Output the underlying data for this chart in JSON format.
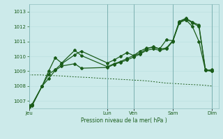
{
  "xlabel": "Pression niveau de la mer( hPa )",
  "background_color": "#cceaea",
  "grid_color_minor": "#b8dede",
  "grid_color_major": "#a0cccc",
  "line_color": "#1a5c1a",
  "ylim": [
    1006.5,
    1013.5
  ],
  "xlim": [
    0,
    29
  ],
  "day_labels": [
    "Jeu",
    "Lun",
    "Ven",
    "Sam",
    "Dim"
  ],
  "day_positions": [
    0,
    12,
    16,
    22,
    28
  ],
  "series1_x": [
    0,
    0.5,
    2,
    3,
    4,
    5,
    7,
    8,
    12,
    13,
    14,
    15,
    16,
    17,
    18,
    19,
    20,
    21,
    22,
    23,
    24,
    25,
    26,
    27,
    28
  ],
  "series1_y": [
    1006.7,
    1006.8,
    1008.0,
    1008.8,
    1009.1,
    1009.5,
    1010.1,
    1010.35,
    1009.55,
    1009.75,
    1010.0,
    1010.25,
    1010.05,
    1010.35,
    1010.55,
    1010.6,
    1010.5,
    1010.55,
    1011.05,
    1012.35,
    1012.55,
    1012.3,
    1012.1,
    1009.1,
    1009.0
  ],
  "series2_x": [
    0,
    0.5,
    2,
    3,
    4,
    5,
    7,
    8,
    12,
    13,
    14,
    15,
    16,
    17,
    18,
    19,
    20,
    21,
    22,
    23,
    24,
    25,
    26,
    27,
    28
  ],
  "series2_y": [
    1006.65,
    1006.75,
    1008.0,
    1009.0,
    1009.9,
    1009.55,
    1010.4,
    1010.05,
    1009.3,
    1009.5,
    1009.65,
    1009.85,
    1010.05,
    1010.2,
    1010.5,
    1010.65,
    1010.5,
    1011.1,
    1011.05,
    1012.3,
    1012.5,
    1012.25,
    1012.0,
    1009.05,
    1009.1
  ],
  "series3_x": [
    0,
    0.5,
    2,
    3,
    4,
    5,
    7,
    8,
    12,
    13,
    14,
    15,
    16,
    17,
    18,
    19,
    20,
    21,
    22,
    23,
    24,
    25,
    26,
    27,
    28
  ],
  "series3_y": [
    1006.6,
    1006.7,
    1008.0,
    1008.5,
    1009.05,
    1009.35,
    1009.5,
    1009.2,
    1009.25,
    1009.45,
    1009.6,
    1009.75,
    1009.95,
    1010.15,
    1010.4,
    1010.5,
    1010.4,
    1010.5,
    1011.0,
    1012.25,
    1012.45,
    1012.0,
    1011.0,
    1009.05,
    1009.0
  ],
  "series_flat_x": [
    0,
    1,
    2,
    3,
    4,
    5,
    6,
    7,
    8,
    9,
    10,
    11,
    12,
    13,
    14,
    15,
    16,
    17,
    18,
    19,
    20,
    21,
    22,
    23,
    24,
    25,
    26,
    27,
    28
  ],
  "series_flat_y": [
    1008.75,
    1008.75,
    1008.75,
    1008.7,
    1008.7,
    1008.68,
    1008.65,
    1008.62,
    1008.6,
    1008.58,
    1008.55,
    1008.52,
    1008.5,
    1008.48,
    1008.45,
    1008.43,
    1008.4,
    1008.38,
    1008.35,
    1008.3,
    1008.25,
    1008.2,
    1008.18,
    1008.15,
    1008.12,
    1008.1,
    1008.08,
    1008.05,
    1008.0
  ],
  "yticks": [
    1007,
    1008,
    1009,
    1010,
    1011,
    1012,
    1013
  ]
}
